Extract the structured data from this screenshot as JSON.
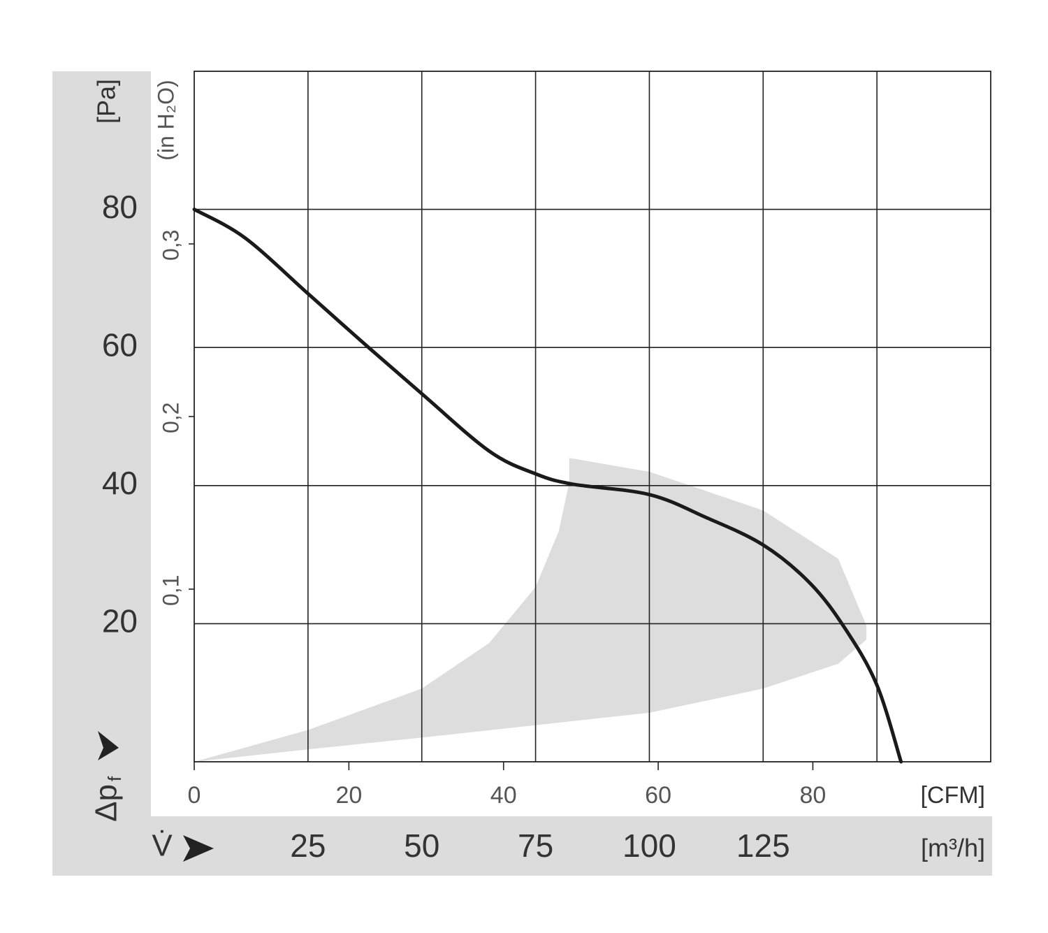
{
  "chart_data": {
    "type": "line",
    "x_label": "V̇",
    "x_unit": "[m³/h]",
    "x2_unit": "[CFM]",
    "y_label": "Δp",
    "y_label_sub": "f",
    "y_unit": "[Pa]",
    "y2_unit": "(in H₂O)",
    "xlim": [
      0,
      175
    ],
    "xticks": [
      25,
      50,
      75,
      100,
      125
    ],
    "xgrid": [
      25,
      50,
      75,
      100,
      125,
      150
    ],
    "x2lim": [
      0,
      103
    ],
    "x2ticks": [
      0,
      20,
      40,
      60,
      80
    ],
    "ylim": [
      0,
      100
    ],
    "yticks": [
      20,
      40,
      60,
      80
    ],
    "y2lim": [
      0,
      0.4
    ],
    "y2ticks": [
      {
        "value": 0.1,
        "label": "0,1"
      },
      {
        "value": 0.2,
        "label": "0,2"
      },
      {
        "value": 0.3,
        "label": "0,3"
      }
    ],
    "grid": true,
    "series": [
      {
        "color": "#1a1a1a",
        "x": [
          0,
          11.1,
          25,
          37.1,
          50,
          64.8,
          75,
          83.2,
          100,
          112.4,
          125,
          135.4,
          143.1,
          150,
          155.3
        ],
        "values": [
          80,
          75.9,
          67.8,
          60.7,
          53.3,
          45.0,
          41.7,
          40.2,
          38.7,
          35.4,
          31.4,
          25.8,
          19.2,
          11.1,
          0
        ]
      }
    ],
    "operating_range": {
      "color": "#dddddd",
      "x": [
        0,
        25,
        50,
        100,
        125,
        141.5,
        147.7,
        147.7,
        141.5,
        125,
        100,
        82.4,
        82.4,
        80.1,
        75,
        64.8,
        50,
        25
      ],
      "y": [
        0,
        1.8,
        3.5,
        7.1,
        10.6,
        14.2,
        17.7,
        19.7,
        29.4,
        36.4,
        42.0,
        44.0,
        40.5,
        33.4,
        25.3,
        17.2,
        10.6,
        4.6
      ]
    }
  }
}
